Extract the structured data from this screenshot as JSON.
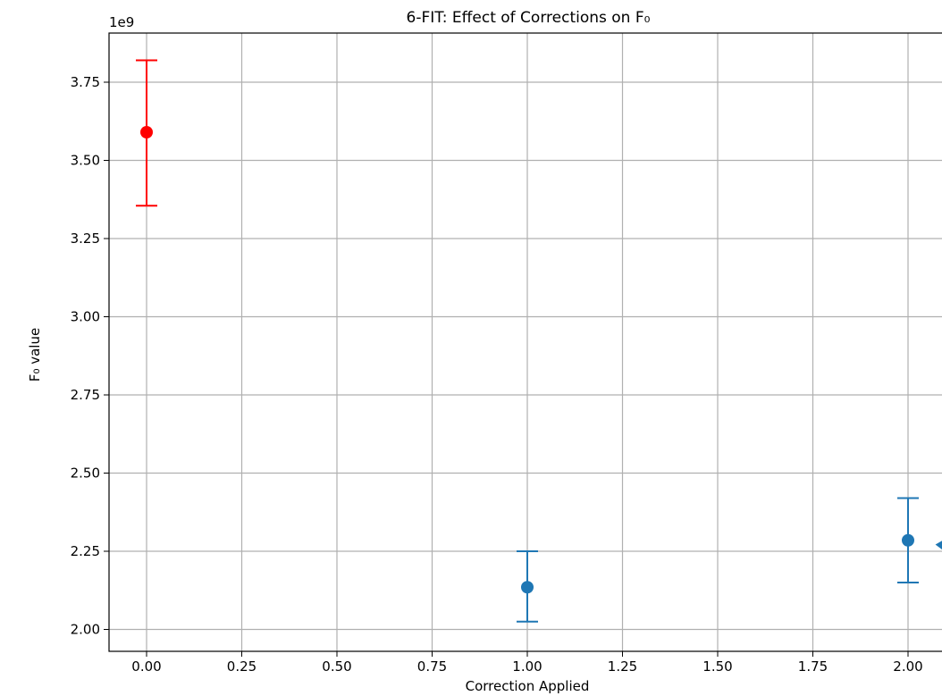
{
  "chart_data": {
    "type": "scatter",
    "title": "6-FIT: Effect of Corrections on F₀",
    "xlabel": "Correction Applied",
    "ylabel": "F₀ value",
    "y_offset_label": "1e9",
    "xlim": [
      -0.1,
      2.1
    ],
    "ylim": [
      1.94,
      3.9
    ],
    "grid": true,
    "x_ticks": [
      0.0,
      0.25,
      0.5,
      0.75,
      1.0,
      1.25,
      1.5,
      1.75,
      2.0
    ],
    "x_tick_labels": [
      "0.00",
      "0.25",
      "0.50",
      "0.75",
      "1.00",
      "1.25",
      "1.50",
      "1.75",
      "2.00"
    ],
    "y_ticks": [
      2.0,
      2.25,
      2.5,
      2.75,
      3.0,
      3.25,
      3.5,
      3.75
    ],
    "y_tick_labels": [
      "2.00",
      "2.25",
      "2.50",
      "2.75",
      "3.00",
      "3.25",
      "3.50",
      "3.75"
    ],
    "points": [
      {
        "x": 0,
        "y": 3.59,
        "err_low": 3.355,
        "err_high": 3.82,
        "color": "#ff0000"
      },
      {
        "x": 1,
        "y": 2.135,
        "err_low": 2.025,
        "err_high": 2.25,
        "color": "#1f77b4"
      },
      {
        "x": 2,
        "y": 2.285,
        "err_low": 2.15,
        "err_high": 2.42,
        "color": "#1f77b4"
      }
    ],
    "annotation_arrow": {
      "x": 2.1,
      "y": 2.26,
      "color": "#1f77b4"
    }
  }
}
